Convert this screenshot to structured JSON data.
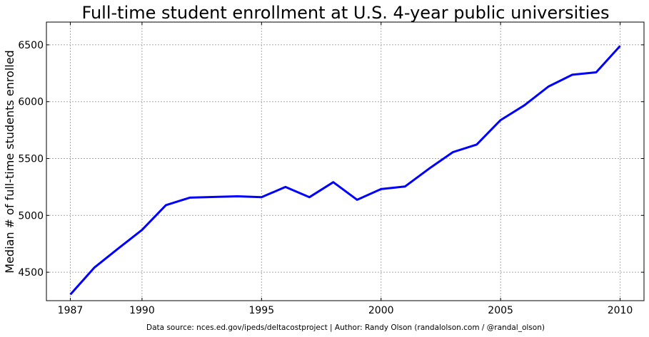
{
  "chart_data": {
    "type": "line",
    "title": "Full-time student enrollment at U.S. 4-year public universities",
    "xlabel": "",
    "ylabel": "Median # of full-time students enrolled",
    "source_note": "Data source: nces.ed.gov/ipeds/deltacostproject | Author: Randy Olson (randalolson.com / @randal_olson)",
    "xlim": [
      1986,
      2011
    ],
    "ylim": [
      4250,
      6700
    ],
    "x_ticks": [
      1987,
      1990,
      1995,
      2000,
      2005,
      2010
    ],
    "y_ticks": [
      4500,
      5000,
      5500,
      6000,
      6500
    ],
    "grid": true,
    "line_color": "#0000ff",
    "series": [
      {
        "x": [
          1987,
          1988,
          1989,
          1990,
          1991,
          1992,
          1994,
          1995,
          1996,
          1997,
          1998,
          1999,
          2000,
          2001,
          2002,
          2003,
          2004,
          2005,
          2006,
          2007,
          2008,
          2009,
          2010
        ],
        "y": [
          4304,
          4540,
          4708,
          4872,
          5090,
          5156,
          5168,
          5160,
          5250,
          5160,
          5292,
          5137,
          5231,
          5254,
          5410,
          5556,
          5623,
          5838,
          5969,
          6133,
          6237,
          6258,
          6490
        ]
      }
    ]
  }
}
